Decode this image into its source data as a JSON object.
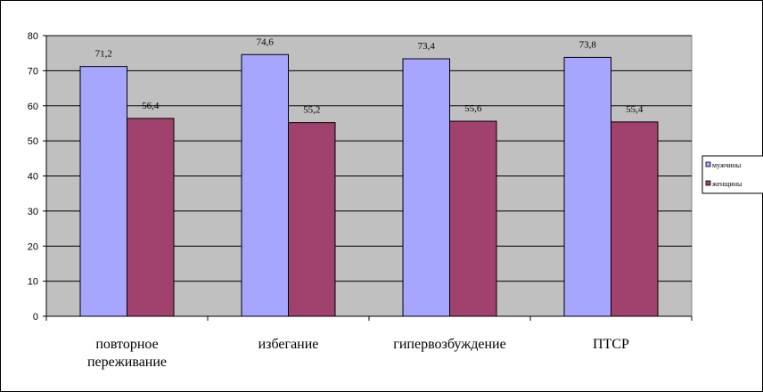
{
  "chart_data": {
    "type": "bar",
    "categories": [
      [
        "повторное",
        "переживание"
      ],
      [
        "избегание"
      ],
      [
        "гипервозбуждение"
      ],
      [
        "ПТСР"
      ]
    ],
    "series": [
      {
        "name": "мужчины",
        "color": "#a6a6ff",
        "values": [
          71.2,
          74.6,
          73.4,
          73.8
        ],
        "value_labels": [
          "71,2",
          "74,6",
          "73,4",
          "73,8"
        ]
      },
      {
        "name": "женщины",
        "color": "#a0426d",
        "values": [
          56.4,
          55.2,
          55.6,
          55.4
        ],
        "value_labels": [
          "56,4",
          "55,2",
          "55,6",
          "55,4"
        ]
      }
    ],
    "ylim": [
      0,
      80
    ],
    "yticks": [
      0,
      10,
      20,
      30,
      40,
      50,
      60,
      70,
      80
    ],
    "grid": true,
    "legend": "right",
    "plot_background": "#c0c0c0"
  }
}
